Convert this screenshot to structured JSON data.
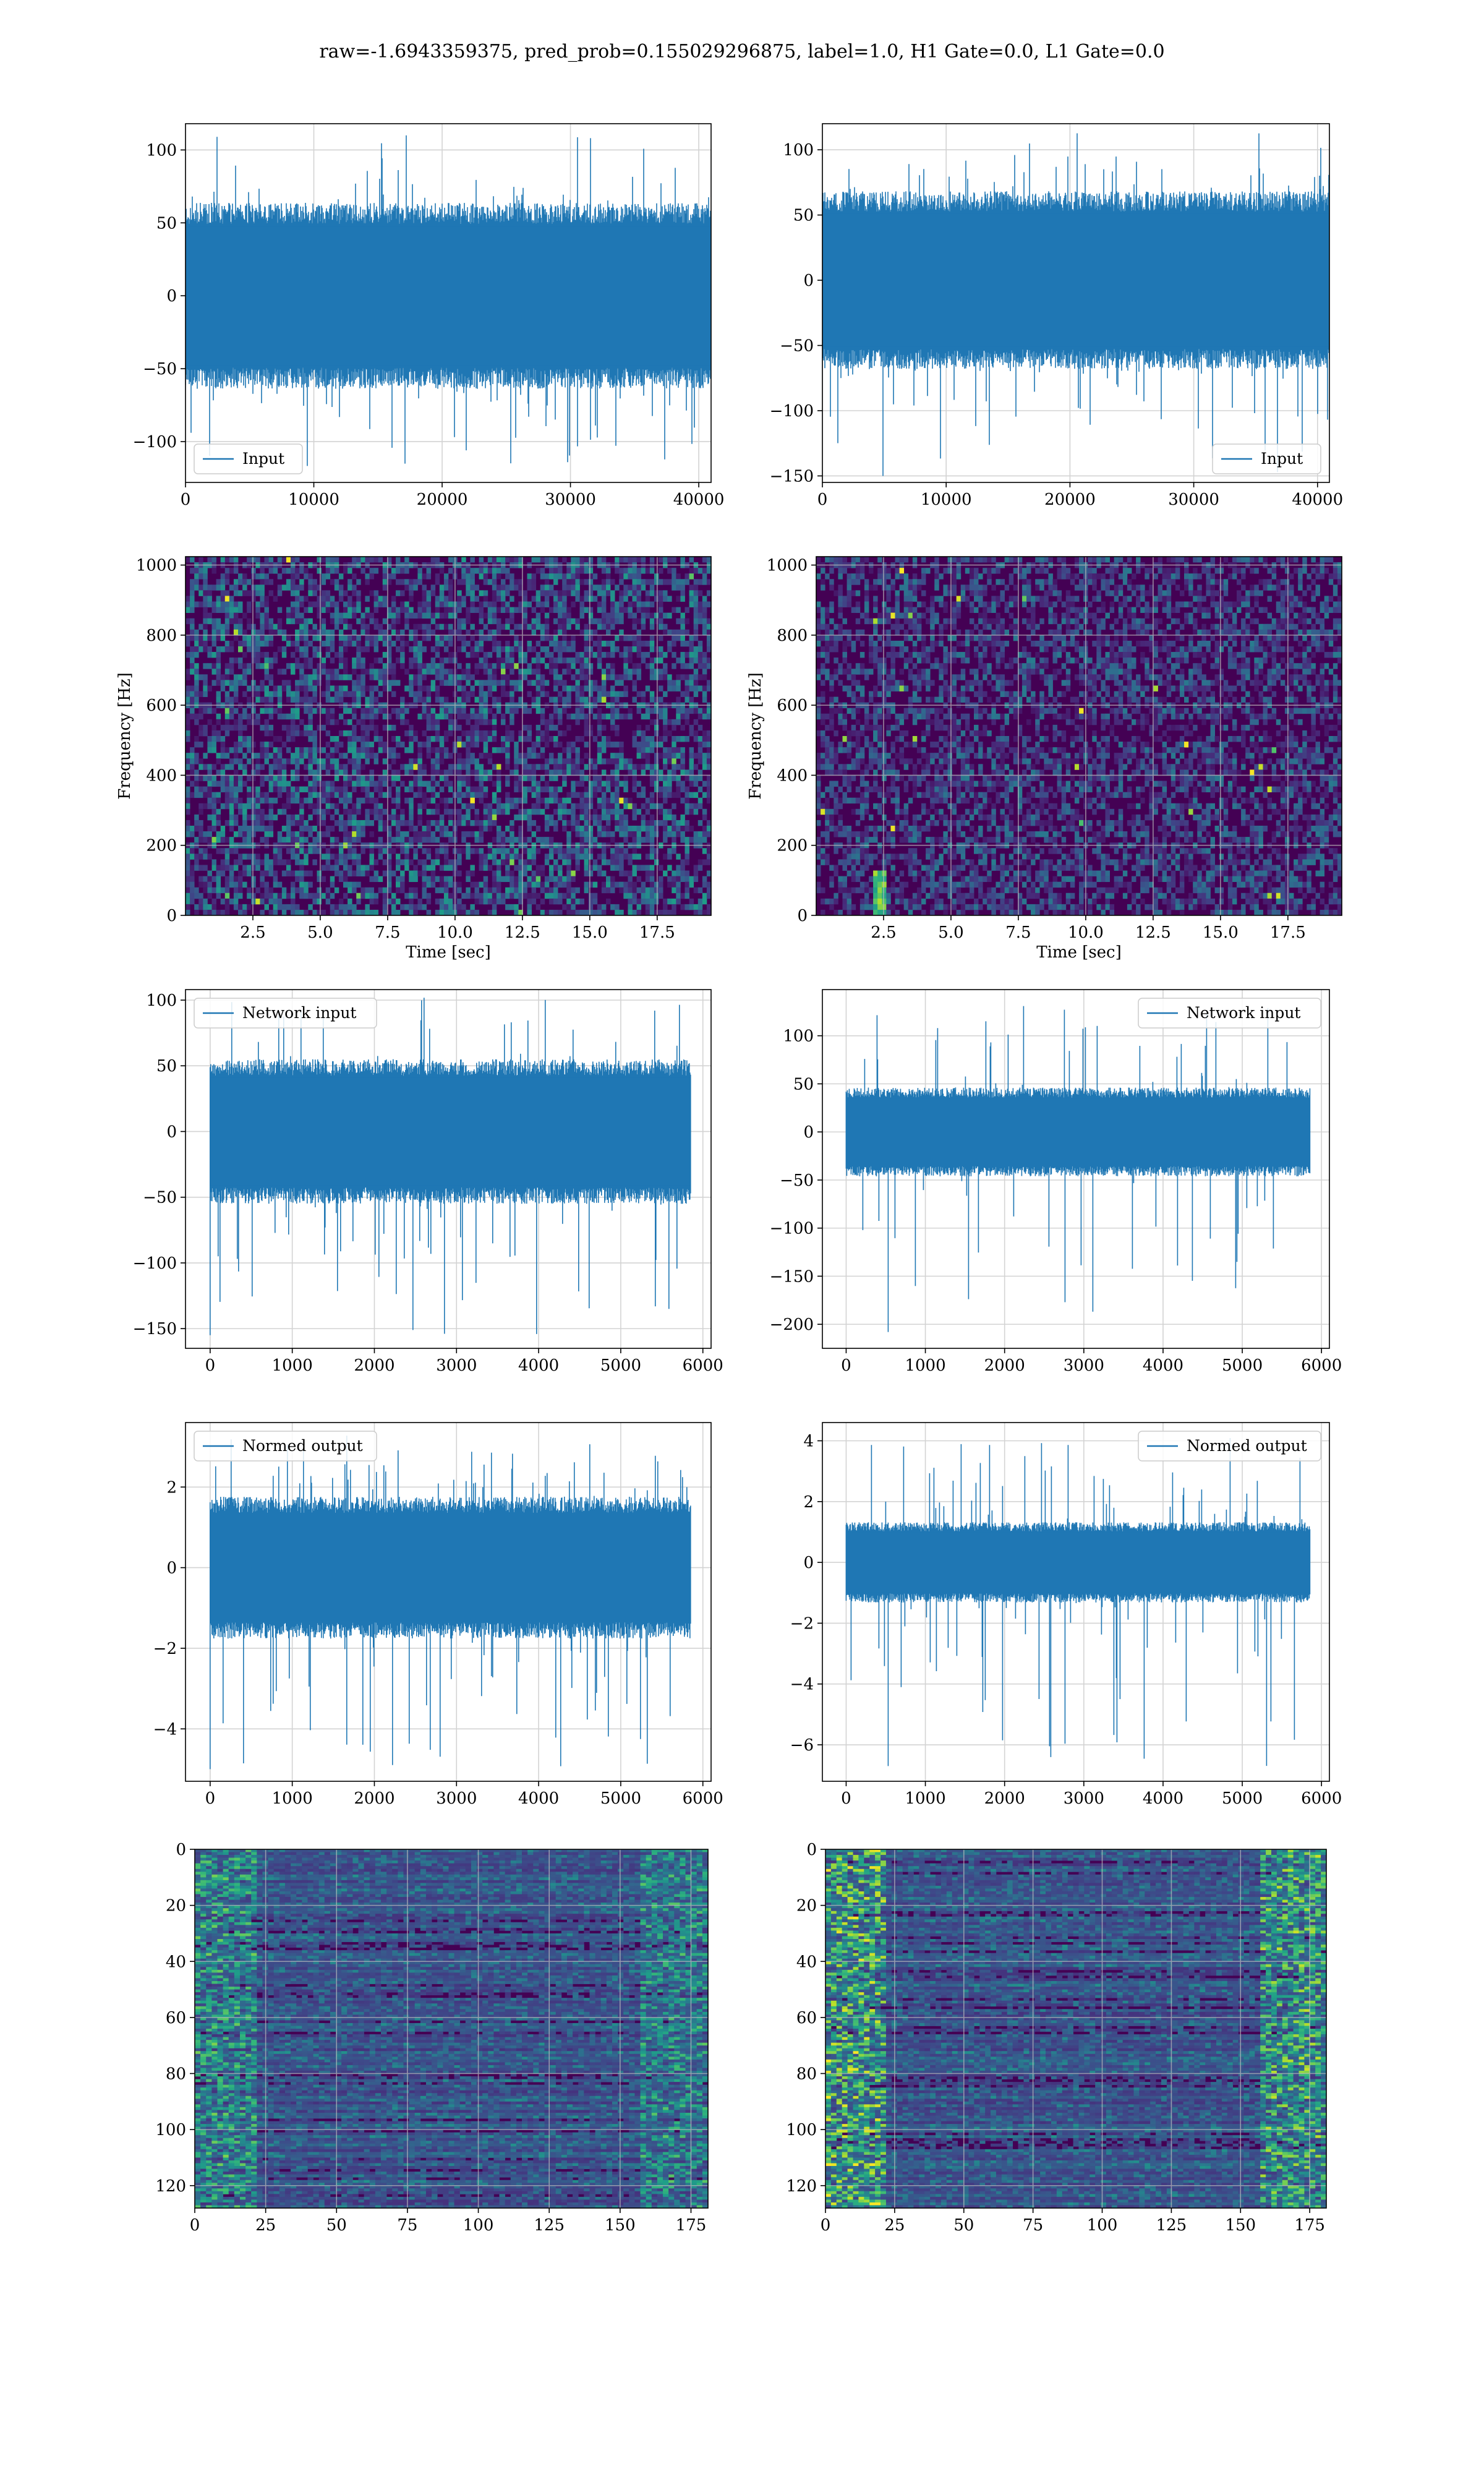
{
  "page_title": "raw=-1.6943359375, pred_prob=0.155029296875, label=1.0, H1 Gate=0.0, L1 Gate=0.0",
  "colors": {
    "line": "#1f77b4",
    "grid": "#d3d3d3",
    "viridis_dark": "#440154",
    "viridis_blue": "#31688e",
    "viridis_teal": "#21918c",
    "viridis_green": "#35b779",
    "viridis_yellow": "#fde725"
  },
  "chart_data": [
    {
      "id": "h1-input",
      "type": "line",
      "legend": "Input",
      "legend_position": "lower-left",
      "xlim": [
        0,
        40960
      ],
      "ylim": [
        -128,
        118
      ],
      "xticks": [
        0,
        10000,
        20000,
        30000,
        40000
      ],
      "yticks": [
        -100,
        -50,
        0,
        50,
        100
      ],
      "xtick_labels": [
        "0",
        "10000",
        "20000",
        "30000",
        "40000"
      ],
      "ytick_labels": [
        "−100",
        "−50",
        "0",
        "50",
        "100"
      ],
      "envelope": {
        "core": 58,
        "peak": 110,
        "trough": -125,
        "start": 0,
        "end": 40960
      },
      "grid": true
    },
    {
      "id": "l1-input",
      "type": "line",
      "legend": "Input",
      "legend_position": "lower-right",
      "xlim": [
        0,
        40960
      ],
      "ylim": [
        -155,
        120
      ],
      "xticks": [
        0,
        10000,
        20000,
        30000,
        40000
      ],
      "yticks": [
        -150,
        -100,
        -50,
        0,
        50,
        100
      ],
      "xtick_labels": [
        "0",
        "10000",
        "20000",
        "30000",
        "40000"
      ],
      "ytick_labels": [
        "−150",
        "−100",
        "−50",
        "0",
        "50",
        "100"
      ],
      "envelope": {
        "core": 62,
        "peak": 115,
        "trough": -150,
        "start": 0,
        "end": 40960
      },
      "grid": true
    },
    {
      "id": "h1-spectrogram",
      "type": "heatmap",
      "xlabel": "Time [sec]",
      "ylabel": "Frequency [Hz]",
      "xlim": [
        0,
        19.5
      ],
      "ylim": [
        0,
        1024
      ],
      "xticks": [
        2.5,
        5.0,
        7.5,
        10.0,
        12.5,
        15.0,
        17.5
      ],
      "yticks": [
        0,
        200,
        400,
        600,
        800,
        1000
      ],
      "xtick_labels": [
        "2.5",
        "5.0",
        "7.5",
        "10.0",
        "12.5",
        "15.0",
        "17.5"
      ],
      "ytick_labels": [
        "0",
        "200",
        "400",
        "600",
        "800",
        "1000"
      ],
      "colormap": "viridis",
      "grid": true
    },
    {
      "id": "l1-spectrogram",
      "type": "heatmap",
      "xlabel": "Time [sec]",
      "ylabel": "Frequency [Hz]",
      "xlim": [
        0,
        19.5
      ],
      "ylim": [
        0,
        1024
      ],
      "xticks": [
        2.5,
        5.0,
        7.5,
        10.0,
        12.5,
        15.0,
        17.5
      ],
      "yticks": [
        0,
        200,
        400,
        600,
        800,
        1000
      ],
      "xtick_labels": [
        "2.5",
        "5.0",
        "7.5",
        "10.0",
        "12.5",
        "15.0",
        "17.5"
      ],
      "ytick_labels": [
        "0",
        "200",
        "400",
        "600",
        "800",
        "1000"
      ],
      "colormap": "viridis",
      "grid": true
    },
    {
      "id": "h1-network-input",
      "type": "line",
      "legend": "Network input",
      "legend_position": "upper-left",
      "xlim": [
        -300,
        6100
      ],
      "ylim": [
        -165,
        108
      ],
      "xticks": [
        0,
        1000,
        2000,
        3000,
        4000,
        5000,
        6000
      ],
      "yticks": [
        -150,
        -100,
        -50,
        0,
        50,
        100
      ],
      "xtick_labels": [
        "0",
        "1000",
        "2000",
        "3000",
        "4000",
        "5000",
        "6000"
      ],
      "ytick_labels": [
        "−150",
        "−100",
        "−50",
        "0",
        "50",
        "100"
      ],
      "envelope": {
        "core": 50,
        "peak": 102,
        "trough": -155,
        "start": 0,
        "end": 5850
      },
      "grid": true
    },
    {
      "id": "l1-network-input",
      "type": "line",
      "legend": "Network input",
      "legend_position": "upper-right",
      "xlim": [
        -300,
        6100
      ],
      "ylim": [
        -225,
        148
      ],
      "xticks": [
        0,
        1000,
        2000,
        3000,
        4000,
        5000,
        6000
      ],
      "yticks": [
        -200,
        -150,
        -100,
        -50,
        0,
        50,
        100
      ],
      "xtick_labels": [
        "0",
        "1000",
        "2000",
        "3000",
        "4000",
        "5000",
        "6000"
      ],
      "ytick_labels": [
        "−200",
        "−150",
        "−100",
        "−50",
        "0",
        "50",
        "100"
      ],
      "envelope": {
        "core": 42,
        "peak": 132,
        "trough": -208,
        "start": 0,
        "end": 5850
      },
      "grid": true
    },
    {
      "id": "h1-normed-output",
      "type": "line",
      "legend": "Normed output",
      "legend_position": "upper-left",
      "xlim": [
        -300,
        6100
      ],
      "ylim": [
        -5.3,
        3.6
      ],
      "xticks": [
        0,
        1000,
        2000,
        3000,
        4000,
        5000,
        6000
      ],
      "yticks": [
        -4,
        -2,
        0,
        2
      ],
      "xtick_labels": [
        "0",
        "1000",
        "2000",
        "3000",
        "4000",
        "5000",
        "6000"
      ],
      "ytick_labels": [
        "−4",
        "−2",
        "0",
        "2"
      ],
      "envelope": {
        "core": 1.6,
        "peak": 3.3,
        "trough": -5.0,
        "start": 0,
        "end": 5850
      },
      "grid": true
    },
    {
      "id": "l1-normed-output",
      "type": "line",
      "legend": "Normed output",
      "legend_position": "upper-right",
      "xlim": [
        -300,
        6100
      ],
      "ylim": [
        -7.2,
        4.6
      ],
      "xticks": [
        0,
        1000,
        2000,
        3000,
        4000,
        5000,
        6000
      ],
      "yticks": [
        -6,
        -4,
        -2,
        0,
        2,
        4
      ],
      "xtick_labels": [
        "0",
        "1000",
        "2000",
        "3000",
        "4000",
        "5000",
        "6000"
      ],
      "ytick_labels": [
        "−6",
        "−4",
        "−2",
        "0",
        "2",
        "4"
      ],
      "envelope": {
        "core": 1.2,
        "peak": 4.2,
        "trough": -6.7,
        "start": 0,
        "end": 5850
      },
      "grid": true
    },
    {
      "id": "h1-feature-map",
      "type": "heatmap",
      "xlim": [
        0,
        181
      ],
      "ylim": [
        128,
        0
      ],
      "xticks": [
        0,
        25,
        50,
        75,
        100,
        125,
        150,
        175
      ],
      "yticks": [
        0,
        20,
        40,
        60,
        80,
        100,
        120
      ],
      "xtick_labels": [
        "0",
        "25",
        "50",
        "75",
        "100",
        "125",
        "150",
        "175"
      ],
      "ytick_labels": [
        "0",
        "20",
        "40",
        "60",
        "80",
        "100",
        "120"
      ],
      "colormap": "viridis",
      "grid": true
    },
    {
      "id": "l1-feature-map",
      "type": "heatmap",
      "xlim": [
        0,
        181
      ],
      "ylim": [
        128,
        0
      ],
      "xticks": [
        0,
        25,
        50,
        75,
        100,
        125,
        150,
        175
      ],
      "yticks": [
        0,
        20,
        40,
        60,
        80,
        100,
        120
      ],
      "xtick_labels": [
        "0",
        "25",
        "50",
        "75",
        "100",
        "125",
        "150",
        "175"
      ],
      "ytick_labels": [
        "0",
        "20",
        "40",
        "60",
        "80",
        "100",
        "120"
      ],
      "colormap": "viridis",
      "grid": true
    }
  ]
}
